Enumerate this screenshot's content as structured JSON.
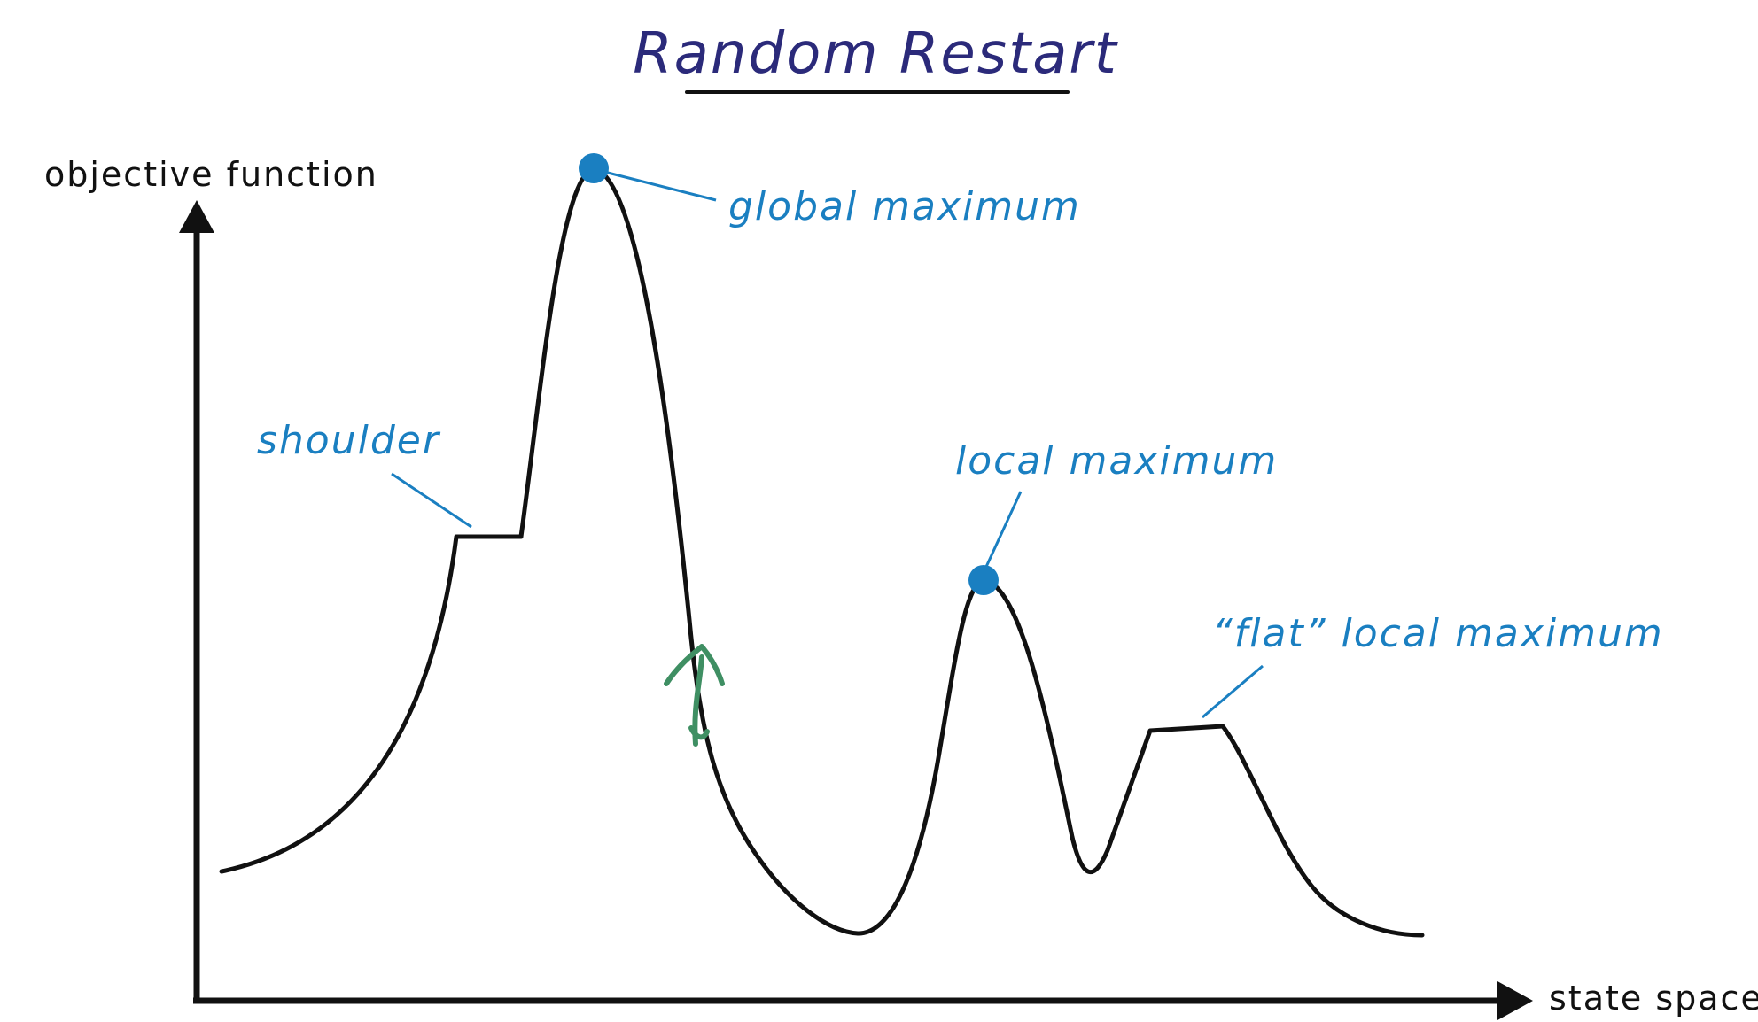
{
  "title": "Random Restart",
  "axes": {
    "y_label": "objective function",
    "x_label": "state space"
  },
  "annotations": {
    "global_maximum": "global maximum",
    "local_maximum": "local maximum",
    "shoulder": "shoulder",
    "flat_local_maximum": "“flat” local maximum"
  },
  "colors": {
    "curve": "#111111",
    "annotation": "#1a7fc1",
    "title": "#2b2a7a",
    "restart_arrow": "#3f8f63"
  },
  "icons": {
    "restart_marker": "up-arrow-icon"
  }
}
